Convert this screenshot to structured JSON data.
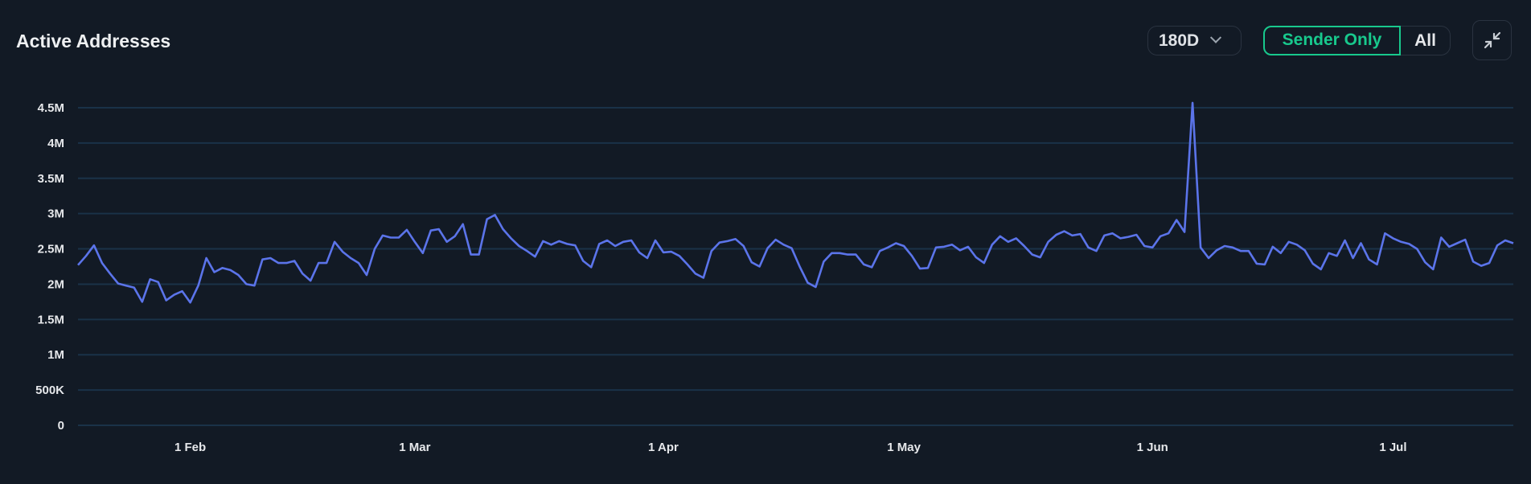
{
  "header": {
    "title": "Active Addresses",
    "range_select": "180D",
    "toggle": {
      "selected": "Sender Only",
      "other": "All"
    },
    "collapse_icon": "collapse-arrows-icon"
  },
  "colors": {
    "background": "#121a25",
    "line": "#5b74ea",
    "grid": "#1a3248",
    "accent": "#18c98d"
  },
  "chart_data": {
    "type": "line",
    "title": "Active Addresses",
    "xlabel": "",
    "ylabel": "",
    "ylim": [
      0,
      4500000
    ],
    "yticks": [
      0,
      500000,
      1000000,
      1500000,
      2000000,
      2500000,
      3000000,
      3500000,
      4000000,
      4500000
    ],
    "ytick_labels": [
      "0",
      "500K",
      "1M",
      "1.5M",
      "2M",
      "2.5M",
      "3M",
      "3.5M",
      "4M",
      "4.5M"
    ],
    "xtick_labels": [
      "1 Feb",
      "1 Mar",
      "1 Apr",
      "1 May",
      "1 Jun",
      "1 Jul"
    ],
    "xtick_dates": [
      "1 Feb",
      "1 Mar",
      "1 Apr",
      "1 May",
      "1 Jun",
      "1 Jul"
    ],
    "grid": true,
    "x": [
      "18 Jan",
      "19 Jan",
      "20 Jan",
      "21 Jan",
      "22 Jan",
      "23 Jan",
      "24 Jan",
      "25 Jan",
      "26 Jan",
      "27 Jan",
      "28 Jan",
      "29 Jan",
      "30 Jan",
      "31 Jan",
      "1 Feb",
      "2 Feb",
      "3 Feb",
      "4 Feb",
      "5 Feb",
      "6 Feb",
      "7 Feb",
      "8 Feb",
      "9 Feb",
      "10 Feb",
      "11 Feb",
      "12 Feb",
      "13 Feb",
      "14 Feb",
      "15 Feb",
      "16 Feb",
      "17 Feb",
      "18 Feb",
      "19 Feb",
      "20 Feb",
      "21 Feb",
      "22 Feb",
      "23 Feb",
      "24 Feb",
      "25 Feb",
      "26 Feb",
      "27 Feb",
      "28 Feb",
      "1 Mar",
      "2 Mar",
      "3 Mar",
      "4 Mar",
      "5 Mar",
      "6 Mar",
      "7 Mar",
      "8 Mar",
      "9 Mar",
      "10 Mar",
      "11 Mar",
      "12 Mar",
      "13 Mar",
      "14 Mar",
      "15 Mar",
      "16 Mar",
      "17 Mar",
      "18 Mar",
      "19 Mar",
      "20 Mar",
      "21 Mar",
      "22 Mar",
      "23 Mar",
      "24 Mar",
      "25 Mar",
      "26 Mar",
      "27 Mar",
      "28 Mar",
      "29 Mar",
      "30 Mar",
      "31 Mar",
      "1 Apr",
      "2 Apr",
      "3 Apr",
      "4 Apr",
      "5 Apr",
      "6 Apr",
      "7 Apr",
      "8 Apr",
      "9 Apr",
      "10 Apr",
      "11 Apr",
      "12 Apr",
      "13 Apr",
      "14 Apr",
      "15 Apr",
      "16 Apr",
      "17 Apr",
      "18 Apr",
      "19 Apr",
      "20 Apr",
      "21 Apr",
      "22 Apr",
      "23 Apr",
      "24 Apr",
      "25 Apr",
      "26 Apr",
      "27 Apr",
      "28 Apr",
      "29 Apr",
      "30 Apr",
      "1 May",
      "2 May",
      "3 May",
      "4 May",
      "5 May",
      "6 May",
      "7 May",
      "8 May",
      "9 May",
      "10 May",
      "11 May",
      "12 May",
      "13 May",
      "14 May",
      "15 May",
      "16 May",
      "17 May",
      "18 May",
      "19 May",
      "20 May",
      "21 May",
      "22 May",
      "23 May",
      "24 May",
      "25 May",
      "26 May",
      "27 May",
      "28 May",
      "29 May",
      "30 May",
      "31 May",
      "1 Jun",
      "2 Jun",
      "3 Jun",
      "4 Jun",
      "5 Jun",
      "6 Jun",
      "7 Jun",
      "8 Jun",
      "9 Jun",
      "10 Jun",
      "11 Jun",
      "12 Jun",
      "13 Jun",
      "14 Jun",
      "15 Jun",
      "16 Jun",
      "17 Jun",
      "18 Jun",
      "19 Jun",
      "20 Jun",
      "21 Jun",
      "22 Jun",
      "23 Jun",
      "24 Jun",
      "25 Jun",
      "26 Jun",
      "27 Jun",
      "28 Jun",
      "29 Jun",
      "30 Jun",
      "1 Jul",
      "2 Jul",
      "3 Jul",
      "4 Jul",
      "5 Jul",
      "6 Jul",
      "7 Jul",
      "8 Jul",
      "9 Jul",
      "10 Jul",
      "11 Jul",
      "12 Jul",
      "13 Jul",
      "14 Jul",
      "15 Jul",
      "16 Jul"
    ],
    "series": [
      {
        "values": [
          2270000,
          2400000,
          2550000,
          2300000,
          2150000,
          2010000,
          1980000,
          1950000,
          1750000,
          2070000,
          2030000,
          1770000,
          1850000,
          1900000,
          1740000,
          1980000,
          2370000,
          2170000,
          2230000,
          2200000,
          2130000,
          2000000,
          1980000,
          2350000,
          2370000,
          2300000,
          2300000,
          2330000,
          2150000,
          2050000,
          2300000,
          2300000,
          2600000,
          2460000,
          2370000,
          2300000,
          2130000,
          2500000,
          2690000,
          2660000,
          2660000,
          2770000,
          2600000,
          2440000,
          2760000,
          2780000,
          2600000,
          2680000,
          2850000,
          2420000,
          2420000,
          2920000,
          2980000,
          2780000,
          2650000,
          2540000,
          2470000,
          2390000,
          2610000,
          2560000,
          2610000,
          2570000,
          2550000,
          2330000,
          2240000,
          2570000,
          2620000,
          2540000,
          2600000,
          2620000,
          2450000,
          2370000,
          2620000,
          2450000,
          2460000,
          2400000,
          2280000,
          2150000,
          2090000,
          2470000,
          2590000,
          2610000,
          2640000,
          2540000,
          2310000,
          2250000,
          2510000,
          2630000,
          2560000,
          2510000,
          2250000,
          2020000,
          1960000,
          2320000,
          2440000,
          2440000,
          2420000,
          2420000,
          2280000,
          2240000,
          2470000,
          2520000,
          2580000,
          2540000,
          2400000,
          2220000,
          2230000,
          2520000,
          2530000,
          2560000,
          2480000,
          2530000,
          2380000,
          2300000,
          2560000,
          2680000,
          2600000,
          2650000,
          2540000,
          2420000,
          2380000,
          2600000,
          2700000,
          2750000,
          2690000,
          2710000,
          2520000,
          2470000,
          2690000,
          2720000,
          2650000,
          2670000,
          2700000,
          2540000,
          2520000,
          2680000,
          2720000,
          2910000,
          2740000,
          4570000,
          2520000,
          2370000,
          2480000,
          2540000,
          2520000,
          2470000,
          2470000,
          2290000,
          2280000,
          2530000,
          2440000,
          2600000,
          2560000,
          2480000,
          2290000,
          2210000,
          2440000,
          2400000,
          2620000,
          2370000,
          2580000,
          2350000,
          2280000,
          2720000,
          2650000,
          2600000,
          2570000,
          2500000,
          2310000,
          2210000,
          2660000,
          2530000,
          2580000,
          2630000,
          2320000,
          2260000,
          2300000,
          2550000,
          2620000,
          2580000
        ]
      }
    ]
  }
}
